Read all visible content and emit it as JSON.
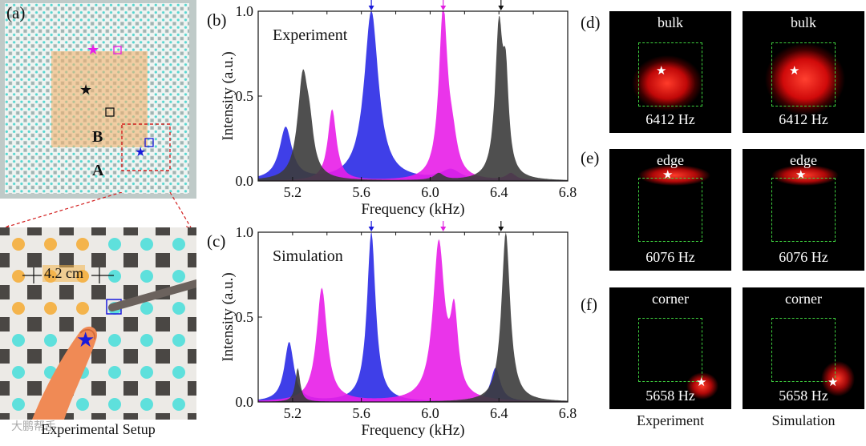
{
  "panel_a": {
    "label": "(a)",
    "region_b": "B",
    "region_a": "A",
    "caption": "Experimental Setup",
    "spacing_label": "4.2 cm",
    "watermark": "大鹏帮手"
  },
  "chart_data": [
    {
      "type": "area",
      "panel": "(b)",
      "title": "Experiment",
      "xlabel": "Frequency (kHz)",
      "ylabel": "Intensity (a.u.)",
      "xlim": [
        5.0,
        6.8
      ],
      "ylim": [
        0.0,
        1.0
      ],
      "xticks": [
        "5.2",
        "5.6",
        "6.0",
        "6.4",
        "6.8"
      ],
      "yticks": [
        "0.0",
        "0.5",
        "1.0"
      ],
      "arrows": [
        {
          "x": 5.658,
          "color": "#1a1adb"
        },
        {
          "x": 6.076,
          "color": "#e020e0"
        },
        {
          "x": 6.412,
          "color": "#111111"
        }
      ],
      "series": [
        {
          "name": "corner",
          "color": "#2a2ae6",
          "peaks": [
            [
              5.16,
              0.31,
              0.065
            ],
            [
              5.658,
              1.0,
              0.075
            ],
            [
              6.12,
              0.06,
              0.1
            ]
          ]
        },
        {
          "name": "edge",
          "color": "#e81ee8",
          "peaks": [
            [
              5.43,
              0.42,
              0.045
            ],
            [
              6.076,
              1.0,
              0.045
            ],
            [
              6.13,
              0.17,
              0.05
            ],
            [
              6.47,
              0.04,
              0.05
            ]
          ]
        },
        {
          "name": "bulk",
          "color": "#3c3c3c",
          "peaks": [
            [
              5.26,
              0.6,
              0.055
            ],
            [
              5.3,
              0.18,
              0.04
            ],
            [
              6.05,
              0.04,
              0.05
            ],
            [
              6.4,
              0.87,
              0.04
            ],
            [
              6.44,
              0.5,
              0.03
            ]
          ]
        }
      ]
    },
    {
      "type": "area",
      "panel": "(c)",
      "title": "Simulation",
      "xlabel": "Frequency (kHz)",
      "ylabel": "Intensity (a.u.)",
      "xlim": [
        5.0,
        6.8
      ],
      "ylim": [
        0.0,
        1.0
      ],
      "xticks": [
        "5.2",
        "5.6",
        "6.0",
        "6.4",
        "6.8"
      ],
      "yticks": [
        "0.0",
        "0.5",
        "1.0"
      ],
      "arrows": [
        {
          "x": 5.658,
          "color": "#1a1adb"
        },
        {
          "x": 6.076,
          "color": "#e020e0"
        },
        {
          "x": 6.412,
          "color": "#111111"
        }
      ],
      "series": [
        {
          "name": "corner",
          "color": "#2a2ae6",
          "peaks": [
            [
              5.18,
              0.35,
              0.05
            ],
            [
              5.658,
              1.0,
              0.045
            ],
            [
              6.38,
              0.2,
              0.05
            ]
          ]
        },
        {
          "name": "edge",
          "color": "#e81ee8",
          "peaks": [
            [
              5.37,
              0.67,
              0.055
            ],
            [
              6.05,
              0.92,
              0.06
            ],
            [
              6.14,
              0.45,
              0.04
            ]
          ]
        },
        {
          "name": "bulk",
          "color": "#3c3c3c",
          "peaks": [
            [
              5.23,
              0.2,
              0.025
            ],
            [
              6.44,
              1.0,
              0.045
            ]
          ]
        }
      ]
    }
  ],
  "maps": {
    "d": {
      "label": "(d)",
      "mode": "bulk",
      "freq": "6412 Hz"
    },
    "e": {
      "label": "(e)",
      "mode": "edge",
      "freq": "6076 Hz"
    },
    "f": {
      "label": "(f)",
      "mode": "corner",
      "freq": "5658 Hz"
    },
    "col_experiment": "Experiment",
    "col_simulation": "Simulation"
  }
}
